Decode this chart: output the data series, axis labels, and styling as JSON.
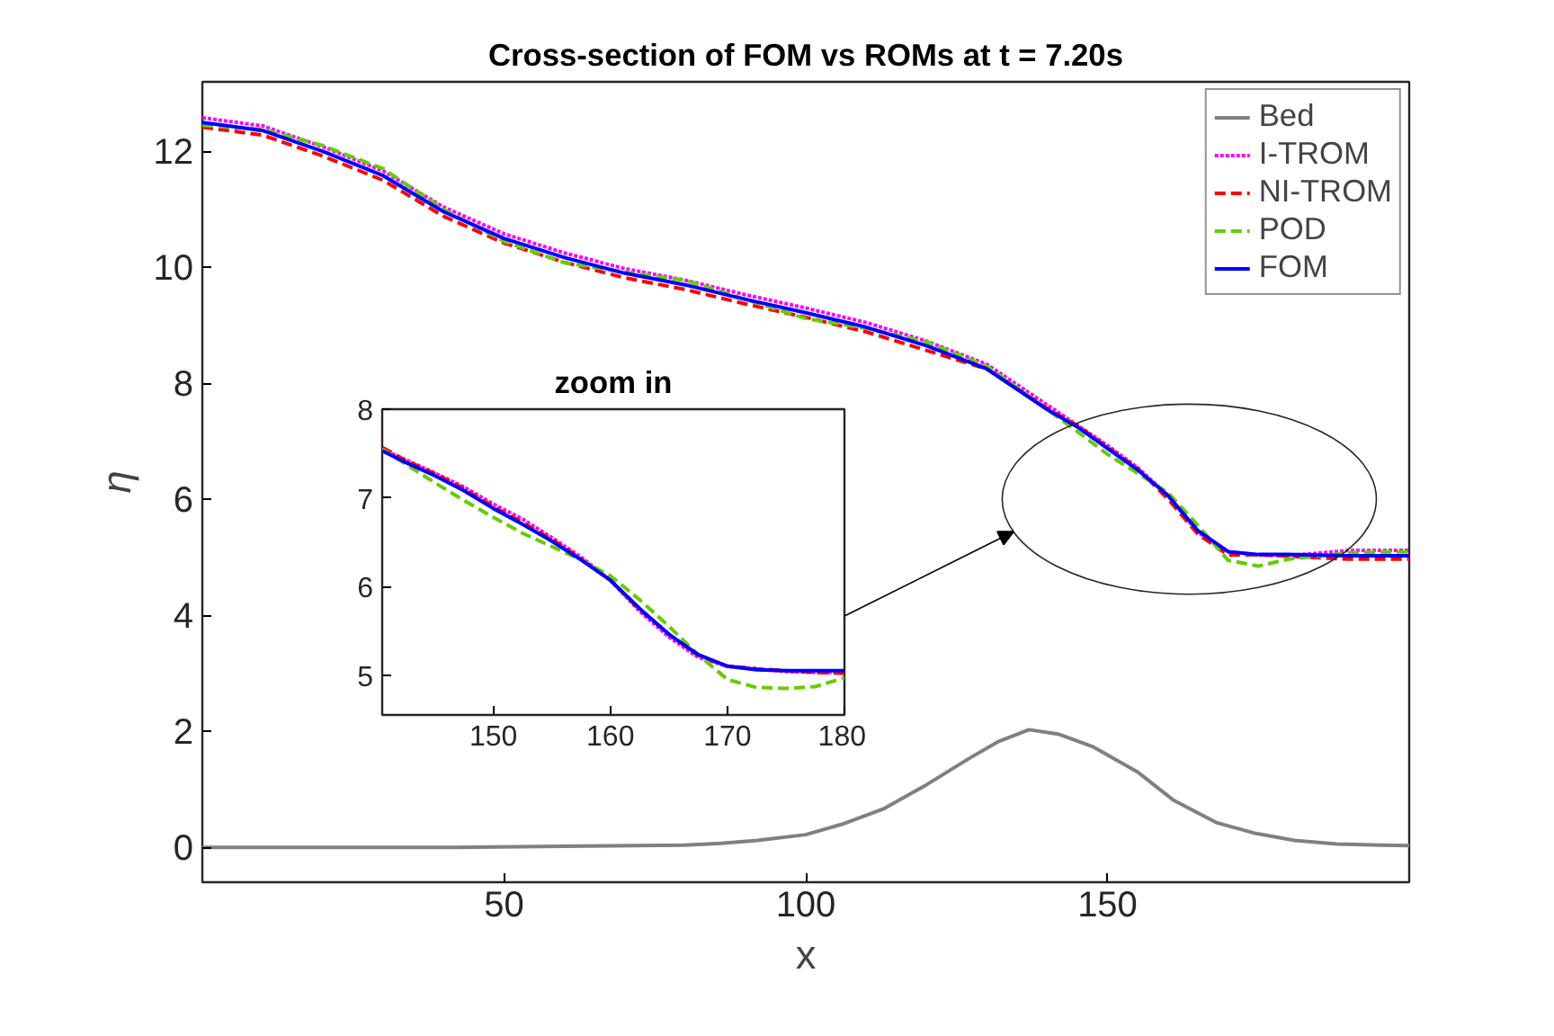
{
  "chart_data": [
    {
      "type": "line",
      "title": "Cross-section of FOM vs ROMs at t = 7.20s",
      "xlabel": "x",
      "ylabel": "η",
      "xlim": [
        0,
        200
      ],
      "ylim": [
        -0.6,
        13.2
      ],
      "xticks": [
        50,
        100,
        150
      ],
      "yticks": [
        0,
        2,
        4,
        6,
        8,
        10,
        12
      ],
      "legend": "top right",
      "series": [
        {
          "name": "Bed",
          "color": "#808080",
          "line_style": "solid",
          "x": [
            0,
            20,
            40,
            60,
            80,
            86,
            92,
            100,
            106,
            113,
            120,
            127,
            132,
            137,
            142,
            147.5,
            155,
            161,
            168,
            174.6,
            181,
            188,
            195,
            200
          ],
          "values": [
            0,
            0,
            0,
            0.02,
            0.04,
            0.07,
            0.12,
            0.22,
            0.4,
            0.67,
            1.08,
            1.53,
            1.83,
            2.03,
            1.95,
            1.74,
            1.3,
            0.81,
            0.43,
            0.24,
            0.12,
            0.06,
            0.04,
            0.03
          ]
        },
        {
          "name": "I-TROM",
          "color": "#ff00ff",
          "line_style": "dotted",
          "x": [
            0,
            10,
            20,
            30,
            40,
            50,
            60,
            70,
            80,
            90,
            100,
            110,
            120,
            130,
            140,
            145,
            150,
            155,
            160,
            165,
            170,
            175,
            180,
            190,
            200
          ],
          "values": [
            12.58,
            12.44,
            12.08,
            11.66,
            11.04,
            10.58,
            10.25,
            9.98,
            9.78,
            9.53,
            9.3,
            9.05,
            8.73,
            8.33,
            7.63,
            7.28,
            6.93,
            6.55,
            6.07,
            5.43,
            5.1,
            5.04,
            5.03,
            5.12,
            5.12
          ]
        },
        {
          "name": "NI-TROM",
          "color": "#ff0000",
          "line_style": "dashed",
          "x": [
            0,
            10,
            20,
            30,
            40,
            50,
            60,
            70,
            80,
            90,
            100,
            110,
            120,
            130,
            140,
            145,
            150,
            155,
            160,
            165,
            170,
            175,
            180,
            190,
            200
          ],
          "values": [
            12.42,
            12.28,
            11.92,
            11.5,
            10.88,
            10.42,
            10.09,
            9.82,
            9.62,
            9.37,
            9.14,
            8.89,
            8.57,
            8.25,
            7.57,
            7.27,
            6.9,
            6.53,
            6.01,
            5.4,
            5.04,
            5.05,
            5.02,
            4.97,
            4.97
          ]
        },
        {
          "name": "POD",
          "color": "#66cc00",
          "line_style": "dashed",
          "x": [
            0,
            10,
            20,
            30,
            40,
            50,
            60,
            70,
            80,
            90,
            100,
            110,
            120,
            130,
            140,
            145,
            150,
            155,
            160,
            165,
            170,
            175,
            180,
            190,
            200
          ],
          "values": [
            12.45,
            12.38,
            12.1,
            11.7,
            11.0,
            10.45,
            10.08,
            9.92,
            9.78,
            9.45,
            9.12,
            8.95,
            8.72,
            8.3,
            7.55,
            7.17,
            6.78,
            6.45,
            6.12,
            5.55,
            4.95,
            4.85,
            4.97,
            5.08,
            5.1
          ]
        },
        {
          "name": "FOM",
          "color": "#0000ff",
          "line_style": "solid",
          "x": [
            0,
            10,
            20,
            30,
            40,
            50,
            60,
            70,
            80,
            90,
            100,
            110,
            120,
            130,
            140,
            145,
            150,
            155,
            160,
            165,
            170,
            175,
            180,
            190,
            200
          ],
          "values": [
            12.5,
            12.36,
            12.0,
            11.58,
            10.96,
            10.5,
            10.17,
            9.9,
            9.7,
            9.45,
            9.22,
            8.97,
            8.65,
            8.25,
            7.55,
            7.25,
            6.88,
            6.51,
            6.07,
            5.46,
            5.1,
            5.05,
            5.05,
            5.03,
            5.03
          ]
        }
      ]
    },
    {
      "type": "line",
      "title": "zoom in",
      "xlim": [
        140.5,
        180
      ],
      "ylim": [
        4.55,
        8
      ],
      "xticks": [
        150,
        160,
        170,
        180
      ],
      "yticks": [
        5,
        6,
        7,
        8
      ],
      "x": [
        140.5,
        142.5,
        145,
        147.5,
        150,
        152.5,
        155,
        157.5,
        160,
        162.5,
        165,
        167.5,
        170,
        172.5,
        175,
        177.5,
        180
      ],
      "series": [
        {
          "color": "#ff00ff",
          "line_style": "dotted",
          "values": [
            7.55,
            7.43,
            7.28,
            7.12,
            6.93,
            6.76,
            6.55,
            6.33,
            6.07,
            5.72,
            5.43,
            5.2,
            5.1,
            5.07,
            5.04,
            5.03,
            5.03
          ]
        },
        {
          "color": "#ff0000",
          "line_style": "dashed",
          "values": [
            7.57,
            7.42,
            7.27,
            7.1,
            6.9,
            6.72,
            6.53,
            6.31,
            6.07,
            5.74,
            5.46,
            5.22,
            5.1,
            5.07,
            5.05,
            5.03,
            5.02
          ]
        },
        {
          "color": "#66cc00",
          "line_style": "dashed",
          "values": [
            7.55,
            7.38,
            7.17,
            6.97,
            6.78,
            6.6,
            6.45,
            6.3,
            6.12,
            5.85,
            5.55,
            5.23,
            4.95,
            4.86,
            4.85,
            4.87,
            4.97
          ]
        },
        {
          "color": "#0000ff",
          "line_style": "solid",
          "values": [
            7.53,
            7.4,
            7.25,
            7.08,
            6.88,
            6.7,
            6.51,
            6.3,
            6.07,
            5.75,
            5.46,
            5.23,
            5.1,
            5.06,
            5.05,
            5.05,
            5.05
          ]
        }
      ]
    }
  ]
}
